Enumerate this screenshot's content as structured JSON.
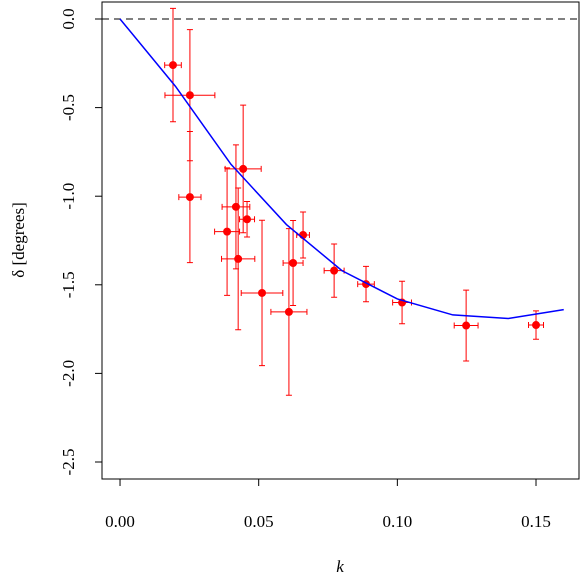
{
  "chart_data": {
    "type": "scatter",
    "x_label": "k",
    "y_label": "δ [degrees]",
    "xlim": [
      -0.0065,
      0.1655
    ],
    "ylim": [
      -2.596,
      0.096
    ],
    "xticks": [
      {
        "value": 0,
        "label": "0.00"
      },
      0.05,
      {
        "value": 0.1,
        "label": "0.10"
      },
      0.15
    ],
    "yticks": [
      {
        "value": 0,
        "label": "0.0"
      },
      -0.5,
      {
        "value": -1,
        "label": "-1.0"
      },
      -1.5,
      {
        "value": -2,
        "label": "-2.0"
      },
      -2.5
    ],
    "hline": 0,
    "series": [
      {
        "mark": "point",
        "color": "#ff0000",
        "x": [
          0.0191,
          0.0252,
          0.0252,
          0.0386,
          0.0418,
          0.0426,
          0.0444,
          0.0458,
          0.0512,
          0.0609,
          0.0624,
          0.066,
          0.0772,
          0.0887,
          0.1017,
          0.1248,
          0.15
        ],
        "values": [
          -0.26,
          -0.43,
          -1.005,
          -1.2,
          -1.06,
          -1.354,
          -0.846,
          -1.13,
          -1.546,
          -1.653,
          -1.377,
          -1.219,
          -1.42,
          -1.496,
          -1.6,
          -1.73,
          -1.727
        ],
        "x_err": [
          0.003,
          0.009,
          0.004,
          0.0045,
          0.005,
          0.006,
          0.0065,
          0.0027,
          0.0075,
          0.0065,
          0.0036,
          0.0023,
          0.0036,
          0.003,
          0.0034,
          0.0043,
          0.0027
        ],
        "y_err": [
          0.32,
          0.37,
          0.37,
          0.36,
          0.35,
          0.4,
          0.36,
          0.1,
          0.41,
          0.47,
          0.24,
          0.13,
          0.15,
          0.1,
          0.12,
          0.2,
          0.08
        ]
      },
      {
        "mark": "line",
        "color": "#0000ff",
        "x": [
          0,
          0.02,
          0.04,
          0.06,
          0.08,
          0.1,
          0.12,
          0.14,
          0.16
        ],
        "values": [
          0,
          -0.38,
          -0.82,
          -1.16,
          -1.42,
          -1.58,
          -1.67,
          -1.69,
          -1.64
        ]
      }
    ]
  }
}
